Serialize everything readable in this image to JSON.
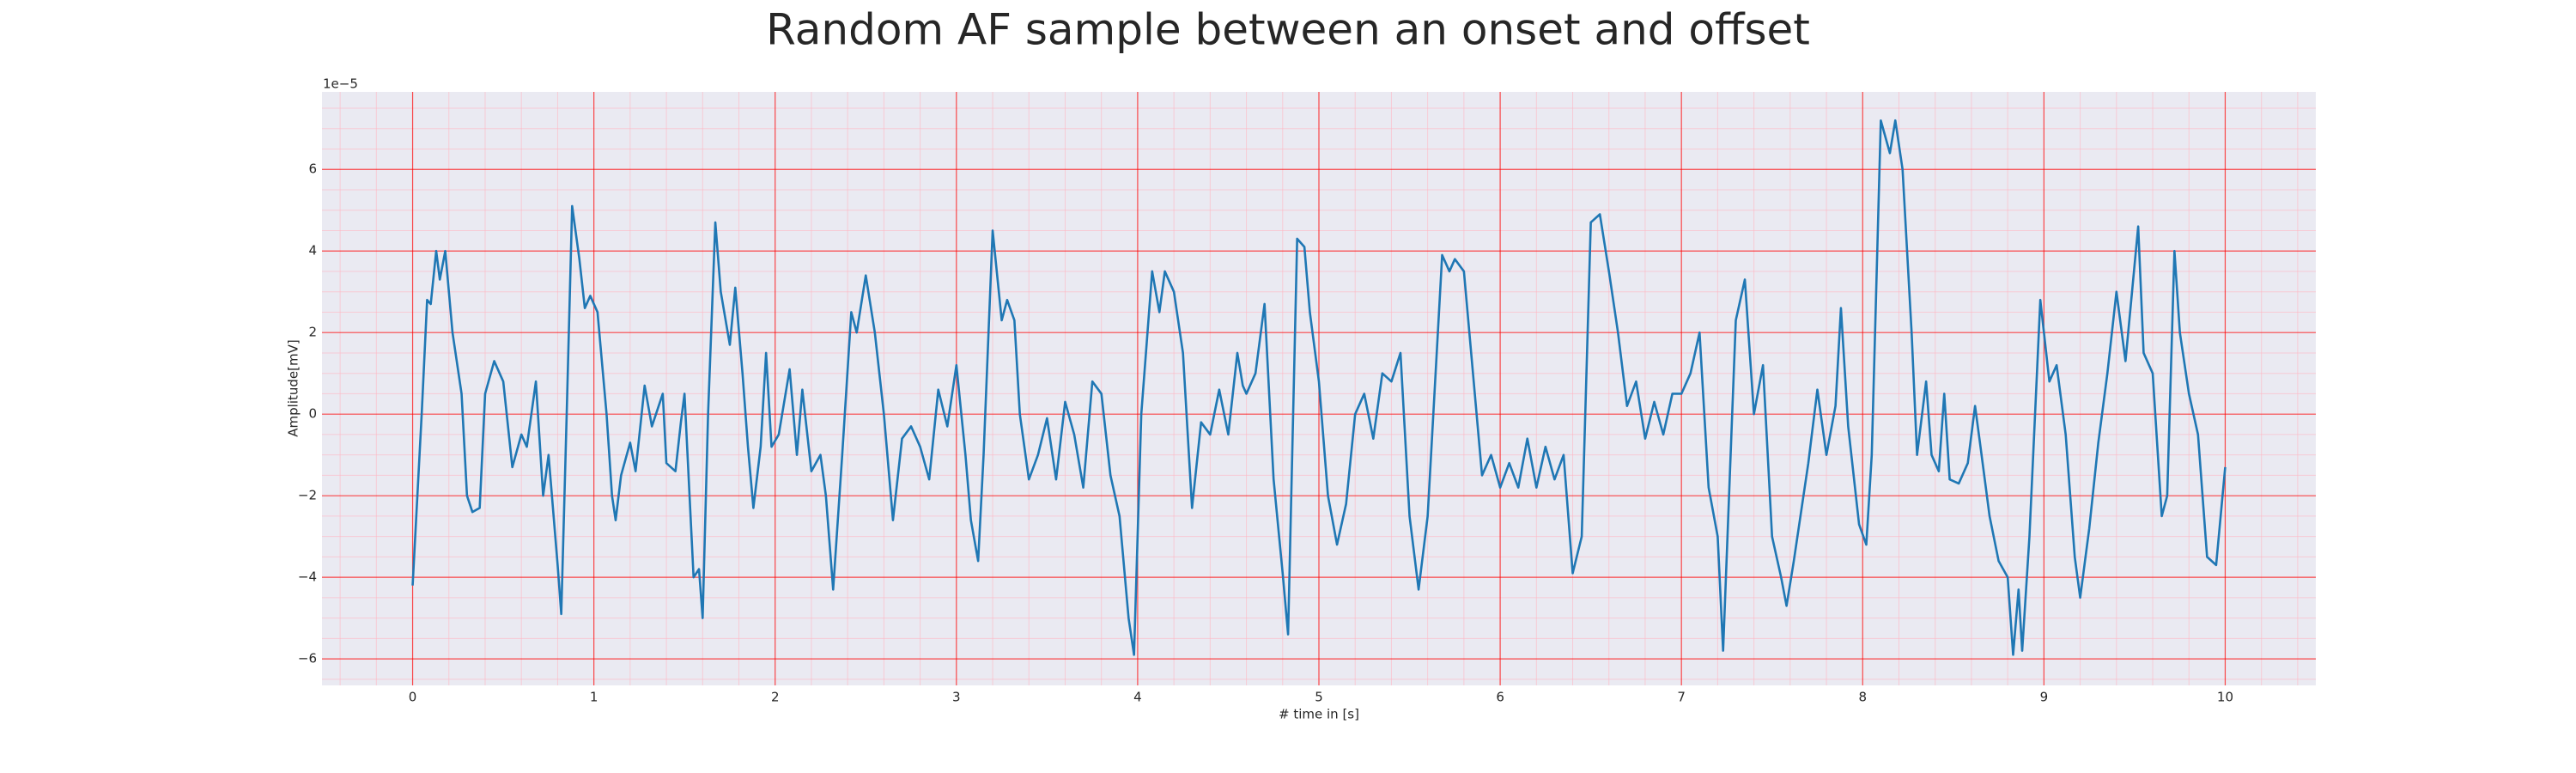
{
  "chart_data": {
    "type": "line",
    "title": "Random AF sample between an onset and offset",
    "xlabel": "# time in [s]",
    "ylabel": "Amplitude[mV]",
    "y_offset_label": "1e−5",
    "color": "#1f77b4",
    "grid": true,
    "xlim": [
      -0.5,
      10.5
    ],
    "ylim": [
      -6.65e-05,
      7.9e-05
    ],
    "xticks": [
      0,
      1,
      2,
      3,
      4,
      5,
      6,
      7,
      8,
      9,
      10
    ],
    "yticks": [
      {
        "value": -6e-05,
        "label": "−6"
      },
      {
        "value": -4e-05,
        "label": "−4"
      },
      {
        "value": -2e-05,
        "label": "−2"
      },
      0,
      {
        "value": 2e-05,
        "label": "2"
      },
      {
        "value": 4e-05,
        "label": "4"
      },
      {
        "value": 6e-05,
        "label": "6"
      }
    ],
    "minor_xticks": [
      -0.4,
      -0.2,
      0.2,
      0.4,
      0.6,
      0.8,
      1.2,
      1.4,
      1.6,
      1.8,
      2.2,
      2.4,
      2.6,
      2.8,
      3.2,
      3.4,
      3.6,
      3.8,
      4.2,
      4.4,
      4.6,
      4.8,
      5.2,
      5.4,
      5.6,
      5.8,
      6.2,
      6.4,
      6.6,
      6.8,
      7.2,
      7.4,
      7.6,
      7.8,
      8.2,
      8.4,
      8.6,
      8.8,
      9.2,
      9.4,
      9.6,
      9.8,
      10.2,
      10.4
    ],
    "minor_yticks": [
      -6.5e-05,
      -5.5e-05,
      -5e-05,
      -4.5e-05,
      -3.5e-05,
      -3e-05,
      -2.5e-05,
      -1.5e-05,
      -1e-05,
      -5e-06,
      5e-06,
      1e-05,
      1.5e-05,
      2.5e-05,
      3e-05,
      3.5e-05,
      4.5e-05,
      5e-05,
      5.5e-05,
      6.5e-05,
      7e-05,
      7.5e-05
    ],
    "x": [
      0,
      0.05,
      0.08,
      0.1,
      0.13,
      0.15,
      0.18,
      0.22,
      0.27,
      0.3,
      0.33,
      0.37,
      0.4,
      0.45,
      0.5,
      0.55,
      0.6,
      0.63,
      0.68,
      0.72,
      0.75,
      0.8,
      0.82,
      0.85,
      0.88,
      0.92,
      0.95,
      0.98,
      1.02,
      1.07,
      1.1,
      1.12,
      1.15,
      1.2,
      1.23,
      1.28,
      1.32,
      1.38,
      1.4,
      1.45,
      1.48,
      1.5,
      1.55,
      1.58,
      1.6,
      1.63,
      1.67,
      1.7,
      1.75,
      1.78,
      1.82,
      1.85,
      1.88,
      1.92,
      1.95,
      1.98,
      2.02,
      2.08,
      2.12,
      2.15,
      2.2,
      2.25,
      2.28,
      2.32,
      2.37,
      2.42,
      2.45,
      2.5,
      2.55,
      2.6,
      2.65,
      2.7,
      2.75,
      2.8,
      2.85,
      2.9,
      2.95,
      3.0,
      3.05,
      3.08,
      3.12,
      3.15,
      3.2,
      3.25,
      3.28,
      3.32,
      3.35,
      3.4,
      3.45,
      3.5,
      3.55,
      3.6,
      3.65,
      3.7,
      3.75,
      3.8,
      3.85,
      3.9,
      3.95,
      3.98,
      4.02,
      4.08,
      4.12,
      4.15,
      4.2,
      4.25,
      4.3,
      4.35,
      4.4,
      4.45,
      4.5,
      4.55,
      4.58,
      4.6,
      4.65,
      4.7,
      4.75,
      4.8,
      4.83,
      4.88,
      4.92,
      4.95,
      5.0,
      5.05,
      5.1,
      5.15,
      5.2,
      5.25,
      5.3,
      5.35,
      5.4,
      5.45,
      5.5,
      5.55,
      5.6,
      5.68,
      5.72,
      5.75,
      5.8,
      5.85,
      5.9,
      5.95,
      6.0,
      6.05,
      6.1,
      6.15,
      6.2,
      6.25,
      6.3,
      6.35,
      6.4,
      6.45,
      6.5,
      6.55,
      6.6,
      6.65,
      6.7,
      6.75,
      6.8,
      6.85,
      6.9,
      6.95,
      7.0,
      7.05,
      7.1,
      7.15,
      7.2,
      7.23,
      7.28,
      7.3,
      7.35,
      7.4,
      7.45,
      7.5,
      7.55,
      7.58,
      7.62,
      7.7,
      7.75,
      7.8,
      7.85,
      7.88,
      7.92,
      7.98,
      8.02,
      8.05,
      8.1,
      8.15,
      8.18,
      8.22,
      8.27,
      8.3,
      8.35,
      8.38,
      8.42,
      8.45,
      8.48,
      8.53,
      8.58,
      8.62,
      8.65,
      8.7,
      8.75,
      8.8,
      8.83,
      8.86,
      8.88,
      8.92,
      8.98,
      9.03,
      9.07,
      9.12,
      9.17,
      9.2,
      9.25,
      9.3,
      9.35,
      9.4,
      9.45,
      9.52,
      9.55,
      9.6,
      9.65,
      9.68,
      9.72,
      9.75,
      9.8,
      9.85,
      9.9,
      9.95,
      10.0
    ],
    "values": [
      -4.2e-05,
      0,
      2.8e-05,
      2.7e-05,
      4e-05,
      3.3e-05,
      4e-05,
      2e-05,
      5e-06,
      -2e-05,
      -2.4e-05,
      -2.3e-05,
      5e-06,
      1.3e-05,
      8e-06,
      -1.3e-05,
      -5e-06,
      -8e-06,
      8e-06,
      -2e-05,
      -1e-05,
      -3.7e-05,
      -4.9e-05,
      0,
      5.1e-05,
      3.8e-05,
      2.6e-05,
      2.9e-05,
      2.5e-05,
      0,
      -2e-05,
      -2.6e-05,
      -1.5e-05,
      -7e-06,
      -1.4e-05,
      7e-06,
      -3e-06,
      5e-06,
      -1.2e-05,
      -1.4e-05,
      -2e-06,
      5e-06,
      -4e-05,
      -3.8e-05,
      -5e-05,
      0,
      4.7e-05,
      3e-05,
      1.7e-05,
      3.1e-05,
      1e-05,
      -8e-06,
      -2.3e-05,
      -8e-06,
      1.5e-05,
      -8e-06,
      -5e-06,
      1.1e-05,
      -1e-05,
      6e-06,
      -1.4e-05,
      -1e-05,
      -2e-05,
      -4.3e-05,
      -1e-05,
      2.5e-05,
      2e-05,
      3.4e-05,
      2e-05,
      0,
      -2.6e-05,
      -6e-06,
      -3e-06,
      -8e-06,
      -1.6e-05,
      6e-06,
      -3e-06,
      1.2e-05,
      -1e-05,
      -2.6e-05,
      -3.6e-05,
      -1e-05,
      4.5e-05,
      2.3e-05,
      2.8e-05,
      2.3e-05,
      0,
      -1.6e-05,
      -1e-05,
      -1e-06,
      -1.6e-05,
      3e-06,
      -5e-06,
      -1.8e-05,
      8e-06,
      5e-06,
      -1.5e-05,
      -2.5e-05,
      -5e-05,
      -5.9e-05,
      0,
      3.5e-05,
      2.5e-05,
      3.5e-05,
      3e-05,
      1.5e-05,
      -2.3e-05,
      -2e-06,
      -5e-06,
      6e-06,
      -5e-06,
      1.5e-05,
      7e-06,
      5e-06,
      1e-05,
      2.7e-05,
      -1.6e-05,
      -3.9e-05,
      -5.4e-05,
      4.3e-05,
      4.1e-05,
      2.5e-05,
      8e-06,
      -2e-05,
      -3.2e-05,
      -2.2e-05,
      0,
      5e-06,
      -6e-06,
      1e-05,
      8e-06,
      1.5e-05,
      -2.5e-05,
      -4.3e-05,
      -2.5e-05,
      3.9e-05,
      3.5e-05,
      3.8e-05,
      3.5e-05,
      1e-05,
      -1.5e-05,
      -1e-05,
      -1.8e-05,
      -1.2e-05,
      -1.8e-05,
      -6e-06,
      -1.8e-05,
      -8e-06,
      -1.6e-05,
      -1e-05,
      -3.9e-05,
      -3e-05,
      4.7e-05,
      4.9e-05,
      3.5e-05,
      2e-05,
      2e-06,
      8e-06,
      -6e-06,
      3e-06,
      -5e-06,
      5e-06,
      5e-06,
      1e-05,
      2e-05,
      -1.8e-05,
      -3e-05,
      -5.8e-05,
      0,
      2.3e-05,
      3.3e-05,
      0,
      1.2e-05,
      -3e-05,
      -4e-05,
      -4.7e-05,
      -3.6e-05,
      -1.2e-05,
      6e-06,
      -1e-05,
      2e-06,
      2.6e-05,
      -3e-06,
      -2.7e-05,
      -3.2e-05,
      -1e-05,
      7.2e-05,
      6.4e-05,
      7.2e-05,
      6e-05,
      2e-05,
      -1e-05,
      8e-06,
      -1e-05,
      -1.4e-05,
      5e-06,
      -1.6e-05,
      -1.7e-05,
      -1.2e-05,
      2e-06,
      -8e-06,
      -2.5e-05,
      -3.6e-05,
      -4e-05,
      -5.9e-05,
      -4.3e-05,
      -5.8e-05,
      -3e-05,
      2.8e-05,
      8e-06,
      1.2e-05,
      -5e-06,
      -3.5e-05,
      -4.5e-05,
      -2.8e-05,
      -7e-06,
      1e-05,
      3e-05,
      1.3e-05,
      4.6e-05,
      1.5e-05,
      1e-05,
      -2.5e-05,
      -2e-05,
      4e-05,
      2e-05,
      5e-06,
      -5e-06,
      -3.5e-05,
      -3.7e-05,
      -1.3e-05
    ]
  }
}
